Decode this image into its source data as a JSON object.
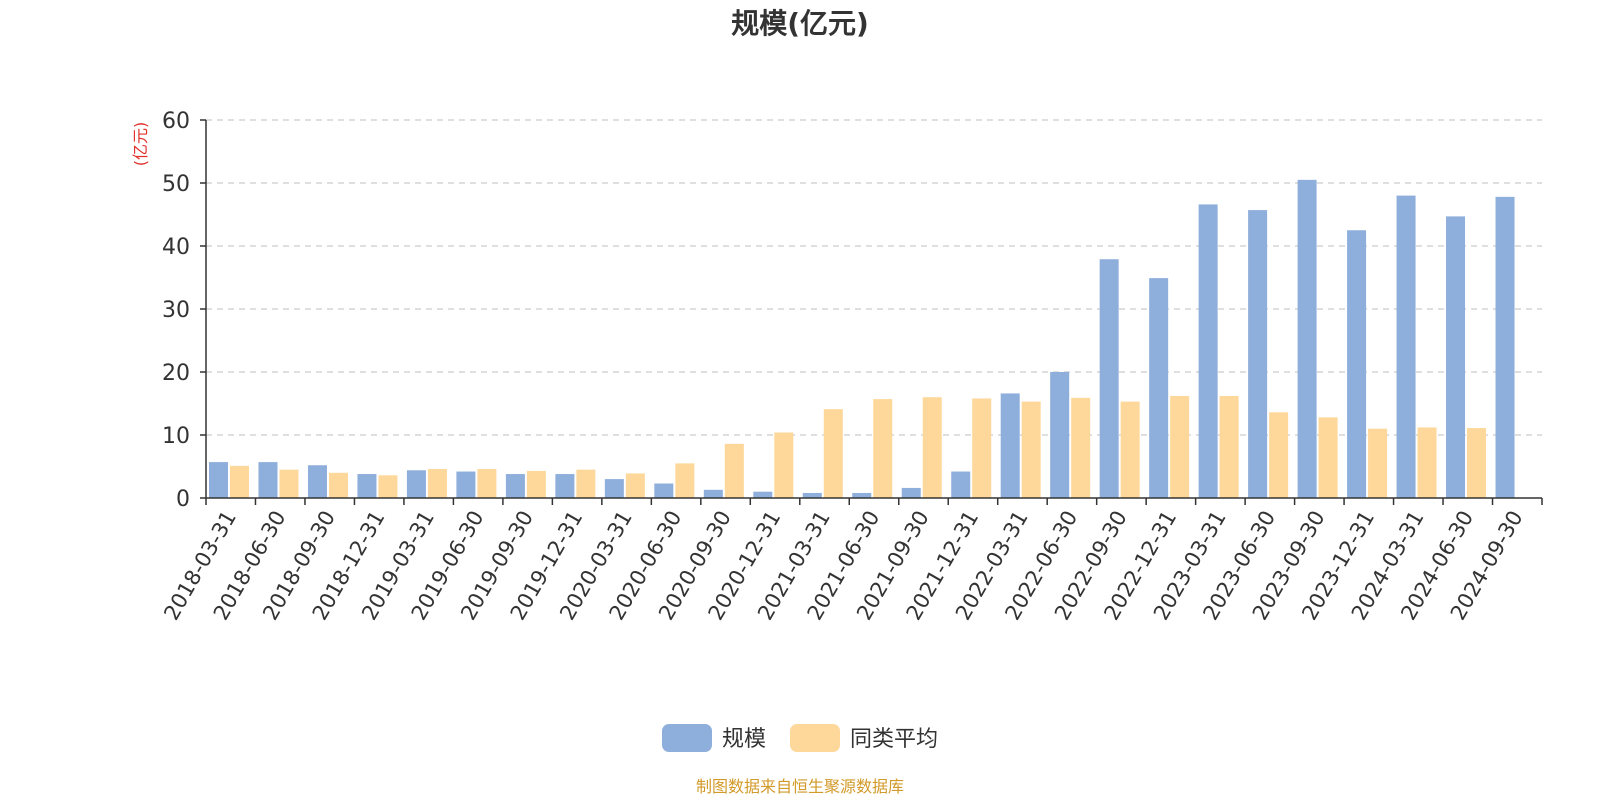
{
  "chart_data": {
    "type": "bar",
    "title": "规模(亿元)",
    "ylabel": "(亿元)",
    "xlabel": "",
    "ylim": [
      0,
      60
    ],
    "yticks": [
      0,
      10,
      20,
      30,
      40,
      50,
      60
    ],
    "grid": true,
    "legend_position": "bottom-center",
    "categories": [
      "2018-03-31",
      "2018-06-30",
      "2018-09-30",
      "2018-12-31",
      "2019-03-31",
      "2019-06-30",
      "2019-09-30",
      "2019-12-31",
      "2020-03-31",
      "2020-06-30",
      "2020-09-30",
      "2020-12-31",
      "2021-03-31",
      "2021-06-30",
      "2021-09-30",
      "2021-12-31",
      "2022-03-31",
      "2022-06-30",
      "2022-09-30",
      "2022-12-31",
      "2023-03-31",
      "2023-06-30",
      "2023-09-30",
      "2023-12-31",
      "2024-03-31",
      "2024-06-30",
      "2024-09-30"
    ],
    "series": [
      {
        "name": "规模",
        "color": "#8eaedb",
        "values": [
          5.7,
          5.7,
          5.2,
          3.8,
          4.4,
          4.2,
          3.8,
          3.8,
          3.0,
          2.3,
          1.3,
          1.0,
          0.8,
          0.8,
          1.6,
          4.2,
          16.6,
          20.0,
          37.9,
          34.9,
          46.6,
          45.7,
          50.5,
          42.5,
          48.0,
          44.7,
          47.8
        ]
      },
      {
        "name": "同类平均",
        "color": "#fdd89a",
        "values": [
          5.1,
          4.5,
          4.0,
          3.6,
          4.6,
          4.6,
          4.3,
          4.5,
          3.9,
          5.5,
          8.6,
          10.4,
          14.1,
          15.7,
          16.0,
          15.8,
          15.3,
          15.9,
          15.3,
          16.2,
          16.2,
          13.6,
          12.8,
          11.0,
          11.2,
          11.1,
          null
        ]
      }
    ]
  },
  "source_note": "制图数据来自恒生聚源数据库",
  "colors": {
    "title": "#333333",
    "axis": "#333333",
    "grid": "#cccccc",
    "ylabel": "#e0312b",
    "source": "#d29a2a"
  }
}
